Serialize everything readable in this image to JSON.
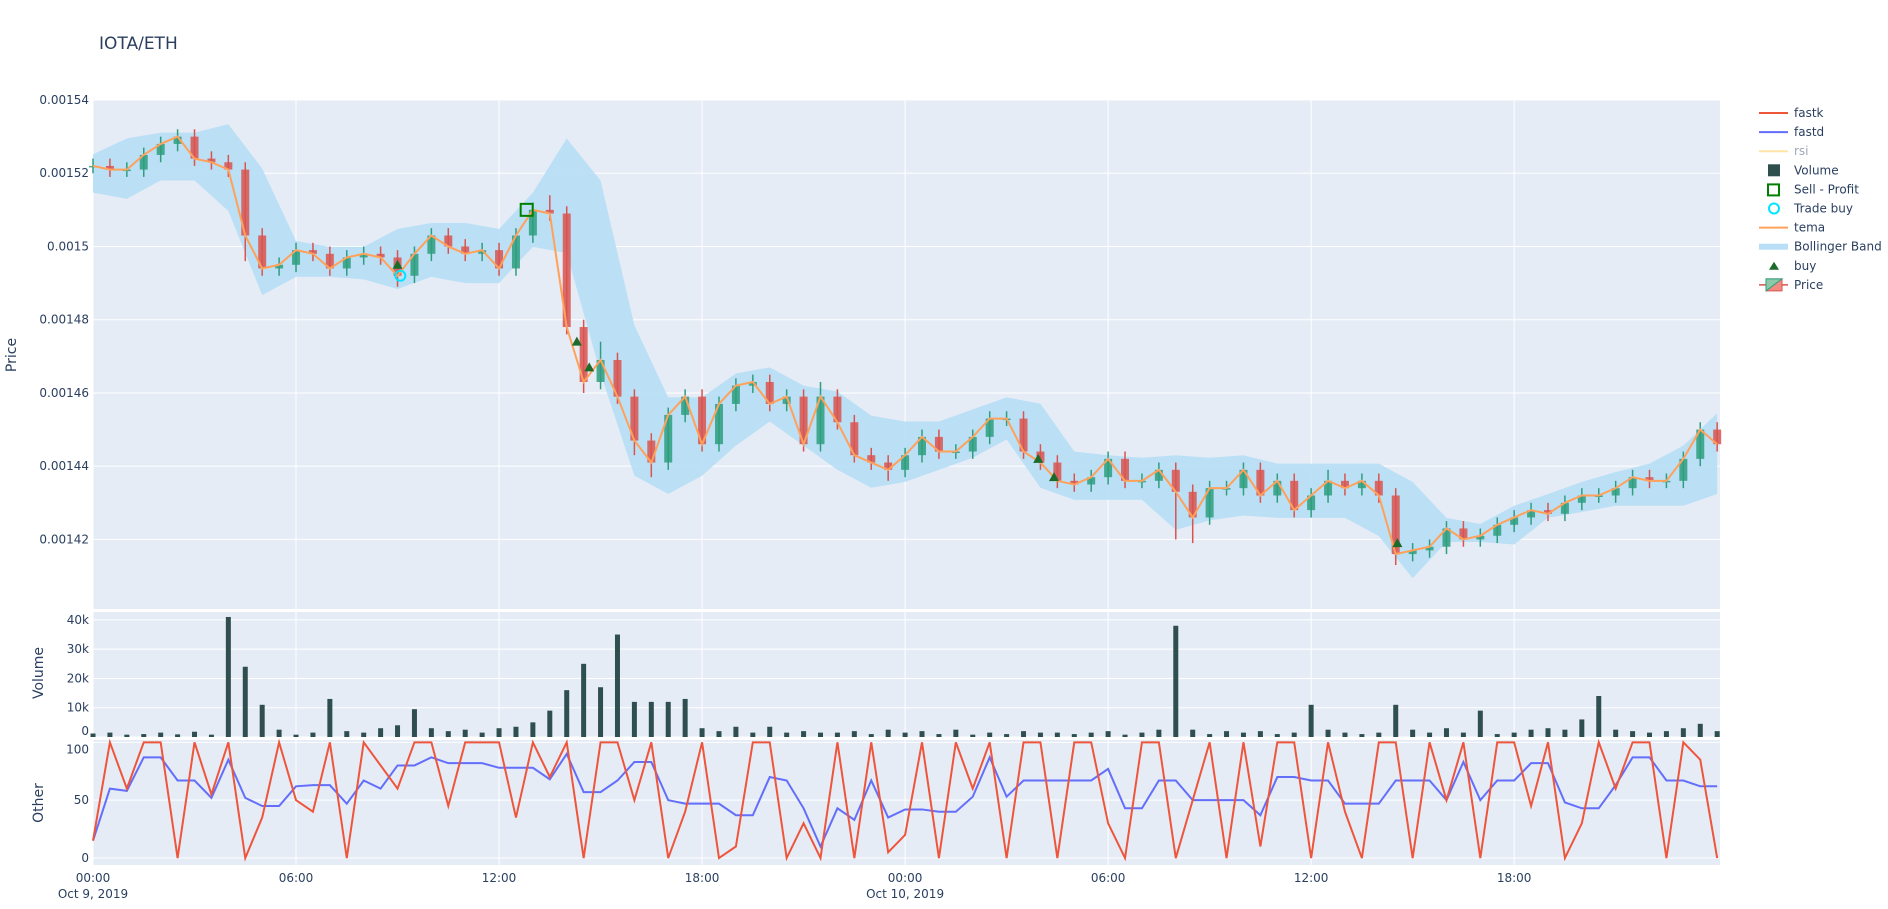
{
  "title": "IOTA/ETH",
  "colors": {
    "plot_bg": "#e5ecf6",
    "grid": "#ffffff",
    "increasing": "#2e9e7e",
    "decreasing": "#d9534f",
    "tema": "#ffa15a",
    "bollinger": "#b8dff5",
    "fastk": "#ef553b",
    "fastd": "#636efa",
    "rsi": "#fecb52",
    "volume": "#2f4f4f",
    "buy": "#1b6b2a",
    "sell_profit": "#008000",
    "trade_buy": "#00e5ff"
  },
  "legend": {
    "placement": "right",
    "items": [
      {
        "label": "fastk",
        "symbol": "line",
        "color": "#ef553b"
      },
      {
        "label": "fastd",
        "symbol": "line",
        "color": "#636efa"
      },
      {
        "label": "rsi",
        "symbol": "line",
        "color": "#fecb52",
        "hidden": true
      },
      {
        "label": "Volume",
        "symbol": "square",
        "color": "#2f4f4f"
      },
      {
        "label": "Sell - Profit",
        "symbol": "square-open",
        "color": "#008000"
      },
      {
        "label": "Trade buy",
        "symbol": "circle-open",
        "color": "#00e5ff"
      },
      {
        "label": "tema",
        "symbol": "line",
        "color": "#ffa15a"
      },
      {
        "label": "Bollinger Band",
        "symbol": "band",
        "color": "#b8dff5"
      },
      {
        "label": "buy",
        "symbol": "triangle-up",
        "color": "#1b6b2a"
      },
      {
        "label": "Price",
        "symbol": "candle",
        "color": "#2e9e7e"
      }
    ]
  },
  "chart_data": {
    "type": "candlestick-subplots",
    "x_range": [
      "2019-10-09 00:00",
      "2019-10-11 00:05"
    ],
    "x_ticks": [
      {
        "time": "2019-10-09 00:00",
        "label": "00:00",
        "sublabel": "Oct 9, 2019"
      },
      {
        "time": "2019-10-09 06:00",
        "label": "06:00"
      },
      {
        "time": "2019-10-09 12:00",
        "label": "12:00"
      },
      {
        "time": "2019-10-09 18:00",
        "label": "18:00"
      },
      {
        "time": "2019-10-10 00:00",
        "label": "00:00",
        "sublabel": "Oct 10, 2019"
      },
      {
        "time": "2019-10-10 06:00",
        "label": "06:00"
      },
      {
        "time": "2019-10-10 12:00",
        "label": "12:00"
      },
      {
        "time": "2019-10-10 18:00",
        "label": "18:00"
      }
    ],
    "grid": true,
    "panels": {
      "price": {
        "ylabel": "Price",
        "ylim": [
          0.001401,
          0.00154
        ],
        "ticks": [
          {
            "v": 0.00142,
            "label": "0.00142"
          },
          {
            "v": 0.00144,
            "label": "0.00144"
          },
          {
            "v": 0.00146,
            "label": "0.00146"
          },
          {
            "v": 0.00148,
            "label": "0.00148"
          },
          {
            "v": 0.0015,
            "label": "0.0015"
          },
          {
            "v": 0.00152,
            "label": "0.00152"
          },
          {
            "v": 0.00154,
            "label": "0.00154"
          }
        ]
      },
      "volume": {
        "ylabel": "Volume",
        "ylim": [
          0,
          42700
        ],
        "ticks": [
          {
            "v": 0,
            "label": "0"
          },
          {
            "v": 10000,
            "label": "10k"
          },
          {
            "v": 20000,
            "label": "20k"
          },
          {
            "v": 30000,
            "label": "30k"
          },
          {
            "v": 40000,
            "label": "40k"
          }
        ]
      },
      "other": {
        "ylabel": "Other",
        "ylim": [
          -6,
          102
        ],
        "ticks": [
          {
            "v": 0,
            "label": "0"
          },
          {
            "v": 50,
            "label": "50"
          },
          {
            "v": 100,
            "label": "100"
          }
        ]
      }
    },
    "series_start": "2019-10-09 00:00",
    "series_step_minutes": 30,
    "candles": {
      "open": [
        0.001522,
        0.001522,
        0.001521,
        0.001521,
        0.001525,
        0.001528,
        0.00153,
        0.001524,
        0.001523,
        0.001521,
        0.001503,
        0.001494,
        0.001495,
        0.001499,
        0.001498,
        0.001494,
        0.001497,
        0.001498,
        0.001497,
        0.001492,
        0.001498,
        0.001503,
        0.0015,
        0.001498,
        0.001499,
        0.001494,
        0.001503,
        0.00151,
        0.001509,
        0.001478,
        0.001463,
        0.001469,
        0.001459,
        0.001447,
        0.001441,
        0.001454,
        0.001459,
        0.001446,
        0.001457,
        0.001462,
        0.001463,
        0.001457,
        0.001459,
        0.001446,
        0.001459,
        0.001452,
        0.001443,
        0.001441,
        0.001439,
        0.001443,
        0.001448,
        0.001444,
        0.001444,
        0.001448,
        0.001453,
        0.001453,
        0.001444,
        0.001441,
        0.001436,
        0.001435,
        0.001437,
        0.001442,
        0.001436,
        0.001436,
        0.001439,
        0.001433,
        0.001426,
        0.001434,
        0.001434,
        0.001439,
        0.001432,
        0.001436,
        0.001428,
        0.001432,
        0.001436,
        0.001434,
        0.001436,
        0.001432,
        0.001416,
        0.001417,
        0.001418,
        0.001423,
        0.00142,
        0.001421,
        0.001424,
        0.001426,
        0.001428,
        0.001427,
        0.00143,
        0.001432,
        0.001432,
        0.001434,
        0.001437,
        0.001436,
        0.001436,
        0.001442,
        0.00145
      ],
      "high": [
        0.001524,
        0.001524,
        0.001523,
        0.001527,
        0.00153,
        0.001532,
        0.001532,
        0.001526,
        0.001525,
        0.001523,
        0.001505,
        0.001497,
        0.001501,
        0.001501,
        0.0015,
        0.001499,
        0.0015,
        0.0015,
        0.001499,
        0.0015,
        0.001505,
        0.001505,
        0.001502,
        0.001501,
        0.001501,
        0.001505,
        0.001512,
        0.001514,
        0.001511,
        0.00148,
        0.001474,
        0.001471,
        0.001461,
        0.001449,
        0.001456,
        0.001461,
        0.001461,
        0.001459,
        0.001464,
        0.001465,
        0.001465,
        0.001461,
        0.001461,
        0.001463,
        0.001461,
        0.001454,
        0.001445,
        0.001443,
        0.001445,
        0.00145,
        0.00145,
        0.001446,
        0.00145,
        0.001455,
        0.001455,
        0.001455,
        0.001446,
        0.001443,
        0.001438,
        0.001439,
        0.001444,
        0.001444,
        0.001438,
        0.001441,
        0.001441,
        0.001435,
        0.001436,
        0.001436,
        0.001441,
        0.001441,
        0.001438,
        0.001438,
        0.001434,
        0.001439,
        0.001438,
        0.001438,
        0.001438,
        0.001434,
        0.001419,
        0.00142,
        0.001425,
        0.001425,
        0.001423,
        0.001426,
        0.001428,
        0.00143,
        0.00143,
        0.001432,
        0.001434,
        0.001434,
        0.001436,
        0.001439,
        0.001439,
        0.001438,
        0.001444,
        0.001452,
        0.001452
      ],
      "low": [
        0.00152,
        0.001519,
        0.001519,
        0.001519,
        0.001523,
        0.001526,
        0.001522,
        0.001521,
        0.001519,
        0.001496,
        0.001492,
        0.001492,
        0.001493,
        0.001496,
        0.001492,
        0.001492,
        0.001495,
        0.001495,
        0.001489,
        0.00149,
        0.001496,
        0.001498,
        0.001496,
        0.001496,
        0.001492,
        0.001492,
        0.001501,
        0.001507,
        0.001476,
        0.00146,
        0.001461,
        0.001457,
        0.001443,
        0.001437,
        0.001439,
        0.001452,
        0.001444,
        0.001444,
        0.001455,
        0.00146,
        0.001455,
        0.001455,
        0.001444,
        0.001444,
        0.00145,
        0.001441,
        0.001439,
        0.001436,
        0.001437,
        0.001441,
        0.001442,
        0.001442,
        0.001442,
        0.001446,
        0.001451,
        0.001442,
        0.001439,
        0.001434,
        0.001433,
        0.001433,
        0.001435,
        0.001434,
        0.001434,
        0.001434,
        0.00142,
        0.001419,
        0.001424,
        0.001432,
        0.001432,
        0.00143,
        0.00143,
        0.001426,
        0.001426,
        0.00143,
        0.001432,
        0.001432,
        0.00143,
        0.001413,
        0.001414,
        0.001415,
        0.001416,
        0.001418,
        0.001418,
        0.001419,
        0.001422,
        0.001424,
        0.001425,
        0.001425,
        0.001428,
        0.00143,
        0.00143,
        0.001432,
        0.001434,
        0.001434,
        0.001434,
        0.00144,
        0.001444
      ],
      "close": [
        0.001522,
        0.001521,
        0.001521,
        0.001525,
        0.001528,
        0.00153,
        0.001524,
        0.001523,
        0.001521,
        0.001503,
        0.001494,
        0.001495,
        0.001499,
        0.001498,
        0.001494,
        0.001497,
        0.001498,
        0.001497,
        0.001492,
        0.001498,
        0.001503,
        0.0015,
        0.001498,
        0.001499,
        0.001494,
        0.001503,
        0.00151,
        0.001509,
        0.001478,
        0.001463,
        0.001469,
        0.001459,
        0.001447,
        0.001441,
        0.001454,
        0.001459,
        0.001446,
        0.001457,
        0.001462,
        0.001463,
        0.001457,
        0.001459,
        0.001446,
        0.001459,
        0.001452,
        0.001443,
        0.001441,
        0.001439,
        0.001443,
        0.001448,
        0.001444,
        0.001444,
        0.001448,
        0.001453,
        0.001453,
        0.001444,
        0.001441,
        0.001436,
        0.001435,
        0.001437,
        0.001442,
        0.001436,
        0.001436,
        0.001439,
        0.001433,
        0.001426,
        0.001434,
        0.001434,
        0.001439,
        0.001432,
        0.001436,
        0.001428,
        0.001432,
        0.001436,
        0.001434,
        0.001436,
        0.001432,
        0.001416,
        0.001417,
        0.001418,
        0.001423,
        0.00142,
        0.001421,
        0.001424,
        0.001426,
        0.001428,
        0.001427,
        0.00143,
        0.001432,
        0.001432,
        0.001434,
        0.001437,
        0.001436,
        0.001436,
        0.001442,
        0.00145,
        0.001446
      ]
    },
    "tema": [
      0.001522,
      0.001521,
      0.001521,
      0.001525,
      0.001528,
      0.00153,
      0.001524,
      0.001523,
      0.001521,
      0.001503,
      0.001494,
      0.001495,
      0.001499,
      0.001498,
      0.001494,
      0.001497,
      0.001498,
      0.001497,
      0.001492,
      0.001498,
      0.001503,
      0.0015,
      0.001498,
      0.001499,
      0.001494,
      0.001503,
      0.00151,
      0.001509,
      0.001478,
      0.001463,
      0.001469,
      0.001459,
      0.001447,
      0.001441,
      0.001454,
      0.001459,
      0.001446,
      0.001457,
      0.001462,
      0.001463,
      0.001457,
      0.001459,
      0.001446,
      0.001459,
      0.001452,
      0.001443,
      0.001441,
      0.001439,
      0.001443,
      0.001448,
      0.001444,
      0.001444,
      0.001448,
      0.001453,
      0.001453,
      0.001444,
      0.001441,
      0.001436,
      0.001435,
      0.001437,
      0.001442,
      0.001436,
      0.001436,
      0.001439,
      0.001433,
      0.001426,
      0.001434,
      0.001434,
      0.001439,
      0.001432,
      0.001436,
      0.001428,
      0.001432,
      0.001436,
      0.001434,
      0.001436,
      0.001432,
      0.001416,
      0.001417,
      0.001418,
      0.001423,
      0.00142,
      0.001421,
      0.001424,
      0.001426,
      0.001428,
      0.001427,
      0.00143,
      0.001432,
      0.001432,
      0.001434,
      0.001437,
      0.001436,
      0.001436,
      0.001442,
      0.00145,
      0.001446
    ],
    "bollinger": {
      "step_minutes": 60,
      "upper": [
        0.0015252,
        0.0015295,
        0.0015311,
        0.0015311,
        0.0015334,
        0.0015213,
        0.0015015,
        0.0014999,
        0.0014999,
        0.0015048,
        0.0015064,
        0.0015064,
        0.0015048,
        0.0015147,
        0.0015295,
        0.001518,
        0.0014785,
        0.0014588,
        0.0014588,
        0.0014653,
        0.001467,
        0.001462,
        0.0014604,
        0.0014538,
        0.0014522,
        0.0014522,
        0.0014555,
        0.0014588,
        0.0014571,
        0.001444,
        0.001443,
        0.0014423,
        0.001443,
        0.0014423,
        0.001443,
        0.0014407,
        0.0014407,
        0.0014407,
        0.0014407,
        0.0014357,
        0.0014259,
        0.0014242,
        0.0014292,
        0.0014324,
        0.0014357,
        0.0014384,
        0.0014407,
        0.0014456,
        0.0014545
      ],
      "lower": [
        0.0015147,
        0.001513,
        0.001518,
        0.001518,
        0.0015097,
        0.0014867,
        0.0014917,
        0.0014917,
        0.001491,
        0.0014884,
        0.0014917,
        0.00149,
        0.00149,
        0.0014999,
        0.0014982,
        0.0014653,
        0.0014374,
        0.0014324,
        0.0014374,
        0.0014456,
        0.0014522,
        0.0014456,
        0.001439,
        0.0014341,
        0.0014357,
        0.001439,
        0.0014423,
        0.0014473,
        0.0014341,
        0.0014308,
        0.0014308,
        0.0014308,
        0.0014226,
        0.0014252,
        0.0014265,
        0.0014259,
        0.0014259,
        0.0014259,
        0.0014209,
        0.0014094,
        0.0014193,
        0.0014193,
        0.0014186,
        0.0014259,
        0.0014275,
        0.0014292,
        0.0014292,
        0.0014292,
        0.0014324
      ]
    },
    "volume": [
      1200,
      1500,
      800,
      1000,
      1500,
      900,
      1800,
      800,
      41000,
      24000,
      11000,
      2500,
      800,
      1500,
      13000,
      2000,
      1500,
      3000,
      4000,
      9500,
      3000,
      2000,
      2500,
      1500,
      3000,
      3500,
      5000,
      9000,
      16000,
      25000,
      17000,
      35000,
      12000,
      12000,
      12000,
      13000,
      3000,
      2000,
      3500,
      1500,
      3500,
      1500,
      2000,
      1500,
      1500,
      2000,
      1000,
      2500,
      1500,
      2000,
      1000,
      2500,
      800,
      1500,
      1000,
      2000,
      1500,
      1500,
      1000,
      1500,
      2000,
      800,
      1500,
      2500,
      38000,
      2500,
      1000,
      2000,
      1500,
      2000,
      1000,
      1500,
      11000,
      2500,
      1500,
      1000,
      1500,
      11000,
      2500,
      1500,
      3000,
      1500,
      9000,
      1000,
      1500,
      2500,
      3000,
      2500,
      6000,
      14000,
      2500,
      2000,
      1500,
      2000,
      3000,
      4500,
      2000
    ],
    "fastk": [
      15,
      100,
      60,
      100,
      100,
      0,
      100,
      55,
      100,
      0,
      35,
      100,
      50,
      40,
      100,
      0,
      100,
      80,
      60,
      100,
      100,
      45,
      100,
      100,
      100,
      35,
      100,
      70,
      100,
      0,
      100,
      100,
      50,
      100,
      0,
      40,
      100,
      0,
      10,
      100,
      100,
      0,
      30,
      0,
      100,
      0,
      100,
      5,
      20,
      100,
      0,
      100,
      60,
      100,
      0,
      100,
      100,
      0,
      100,
      100,
      30,
      0,
      100,
      100,
      0,
      50,
      100,
      0,
      100,
      10,
      100,
      100,
      0,
      100,
      40,
      0,
      100,
      100,
      0,
      100,
      50,
      100,
      0,
      100,
      100,
      45,
      100,
      0,
      30,
      100,
      60,
      100,
      100,
      0,
      100,
      85,
      0
    ],
    "fastd": [
      15,
      60,
      58,
      87,
      87,
      67,
      67,
      52,
      85,
      52,
      45,
      45,
      62,
      63,
      63,
      47,
      67,
      60,
      80,
      80,
      87,
      82,
      82,
      82,
      78,
      78,
      78,
      68,
      90,
      57,
      57,
      67,
      83,
      83,
      50,
      47,
      47,
      47,
      37,
      37,
      70,
      67,
      43,
      10,
      43,
      33,
      67,
      35,
      42,
      42,
      40,
      40,
      53,
      87,
      53,
      67,
      67,
      67,
      67,
      67,
      77,
      43,
      43,
      67,
      67,
      50,
      50,
      50,
      50,
      37,
      70,
      70,
      67,
      67,
      47,
      47,
      47,
      67,
      67,
      67,
      50,
      83,
      50,
      67,
      67,
      82,
      82,
      48,
      43,
      43,
      63,
      87,
      87,
      67,
      67,
      62,
      62
    ],
    "markers": {
      "buy": [
        {
          "time": "2019-10-09 09:00",
          "price": 0.001495
        },
        {
          "time": "2019-10-09 14:18",
          "price": 0.001474
        },
        {
          "time": "2019-10-09 14:40",
          "price": 0.001467
        },
        {
          "time": "2019-10-10 03:56",
          "price": 0.001442
        },
        {
          "time": "2019-10-10 04:24",
          "price": 0.001437
        },
        {
          "time": "2019-10-10 14:33",
          "price": 0.001419
        }
      ],
      "trade_buy": [
        {
          "time": "2019-10-09 09:05",
          "price": 0.001492
        }
      ],
      "sell_profit": [
        {
          "time": "2019-10-09 12:49",
          "price": 0.00151
        }
      ]
    }
  }
}
